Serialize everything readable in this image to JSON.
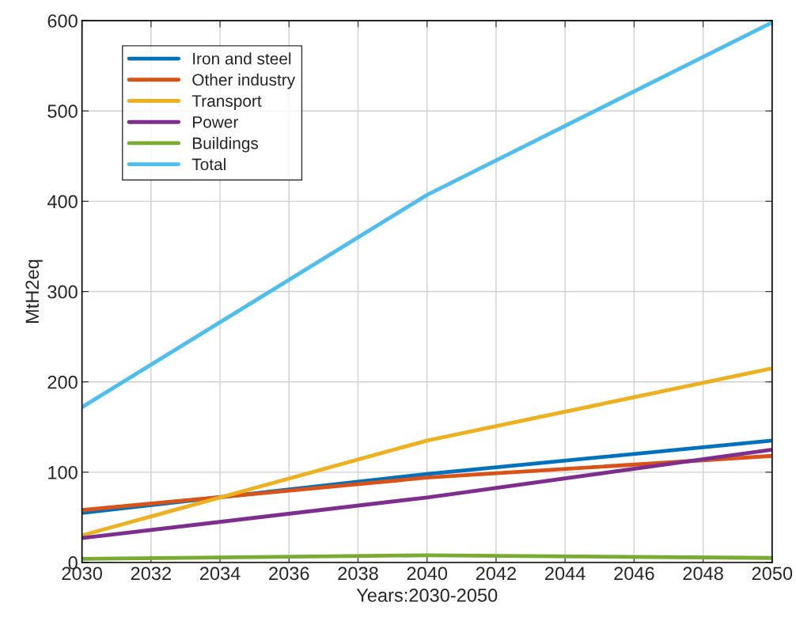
{
  "chart_data": {
    "type": "line",
    "xlabel": "Years:2030-2050",
    "ylabel": "MtH2eq",
    "x": [
      2030,
      2040,
      2050
    ],
    "series": [
      {
        "name": "Iron and steel",
        "color": "#0072bd",
        "values": [
          55,
          98,
          135
        ]
      },
      {
        "name": "Other industry",
        "color": "#d95319",
        "values": [
          58,
          94,
          118
        ]
      },
      {
        "name": "Transport",
        "color": "#edb120",
        "values": [
          30,
          135,
          215
        ]
      },
      {
        "name": "Power",
        "color": "#7e2f8e",
        "values": [
          27,
          72,
          125
        ]
      },
      {
        "name": "Buildings",
        "color": "#77ac30",
        "values": [
          4,
          8,
          5
        ]
      },
      {
        "name": "Total",
        "color": "#4dbeee",
        "values": [
          172,
          407,
          598
        ]
      }
    ],
    "xlim": [
      2030,
      2050
    ],
    "xticks": [
      2030,
      2032,
      2034,
      2036,
      2038,
      2040,
      2042,
      2044,
      2046,
      2048,
      2050
    ],
    "ylim": [
      0,
      600
    ],
    "yticks": [
      0,
      100,
      200,
      300,
      400,
      500,
      600
    ],
    "grid": true,
    "legend": "top left",
    "marker": "none",
    "line_style": "solid"
  }
}
